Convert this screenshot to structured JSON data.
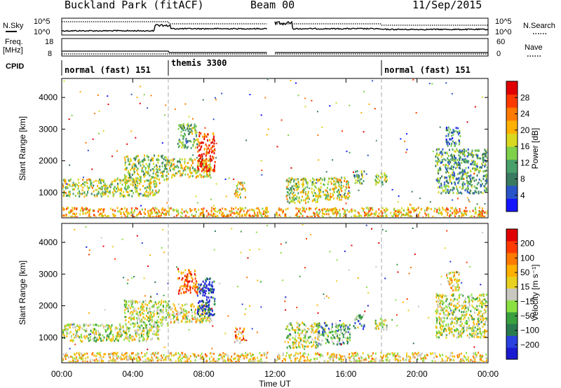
{
  "header": {
    "station": "Buckland Park (fitACF)",
    "beam": "Beam 00",
    "date": "11/Sep/2015"
  },
  "noise_panel": {
    "left_label": "N.Sky",
    "right_label": "N.Search",
    "left_ticks": [
      "10^5",
      "10^0"
    ],
    "right_ticks": [
      "10^5",
      "10^0"
    ]
  },
  "freq_panel": {
    "left_label_line1": "Freq.",
    "left_label_line2": "[MHz]",
    "right_label": "Nave",
    "left_ticks": [
      "18",
      "8"
    ],
    "right_ticks": [
      "60",
      "0"
    ]
  },
  "cpid": {
    "label": "CPID",
    "segments": [
      {
        "name": "normal (fast) 151",
        "start_hour": 0,
        "end_hour": 6
      },
      {
        "name": "themis 3300",
        "start_hour": 6,
        "end_hour": 18
      },
      {
        "name": "normal (fast) 151",
        "start_hour": 18,
        "end_hour": 24
      }
    ]
  },
  "x_axis": {
    "label": "Time UT",
    "ticks": [
      "00:00",
      "04:00",
      "08:00",
      "12:00",
      "16:00",
      "20:00",
      "00:00"
    ]
  },
  "chart_data": [
    {
      "type": "heatmap",
      "panel": "power",
      "ylabel": "Slant Range [km]",
      "yticks": [
        "1000",
        "2000",
        "3000",
        "4000"
      ],
      "ylim": [
        200,
        4600
      ],
      "xlim": [
        0,
        24
      ],
      "colorbar_label": "Power [dB]",
      "colorbar_ticks": [
        "28",
        "24",
        "20",
        "16",
        "12",
        "8",
        "4"
      ],
      "colorbar_colors": [
        "#1414ff",
        "#2a55c8",
        "#3a7a60",
        "#4aa06a",
        "#7fd04a",
        "#d8d820",
        "#ffb000",
        "#ff7a00",
        "#ff3a00",
        "#e00000"
      ],
      "data_gap_hours": [
        11.6,
        12.0
      ],
      "regions": [
        {
          "t0": 0.0,
          "t1": 5.5,
          "r0": 900,
          "r1": 1450,
          "level": 0.5
        },
        {
          "t0": 3.5,
          "t1": 6.0,
          "r0": 1400,
          "r1": 2200,
          "level": 0.45
        },
        {
          "t0": 6.0,
          "t1": 8.4,
          "r0": 1500,
          "r1": 2100,
          "level": 0.5
        },
        {
          "t0": 7.6,
          "t1": 8.6,
          "r0": 1700,
          "r1": 2900,
          "level": 0.85
        },
        {
          "t0": 6.5,
          "t1": 7.6,
          "r0": 2400,
          "r1": 3200,
          "level": 0.4
        },
        {
          "t0": 9.7,
          "t1": 10.3,
          "r0": 850,
          "r1": 1350,
          "level": 0.55
        },
        {
          "t0": 12.6,
          "t1": 14.4,
          "r0": 700,
          "r1": 1500,
          "level": 0.5
        },
        {
          "t0": 14.4,
          "t1": 16.2,
          "r0": 800,
          "r1": 1500,
          "level": 0.55
        },
        {
          "t0": 16.4,
          "t1": 17.0,
          "r0": 1300,
          "r1": 1750,
          "level": 0.4
        },
        {
          "t0": 17.6,
          "t1": 18.3,
          "r0": 1250,
          "r1": 1650,
          "level": 0.45
        },
        {
          "t0": 21.0,
          "t1": 24.0,
          "r0": 1000,
          "r1": 2400,
          "level": 0.35
        },
        {
          "t0": 21.6,
          "t1": 22.4,
          "r0": 2500,
          "r1": 3100,
          "level": 0.25
        },
        {
          "t0": 0.0,
          "t1": 24.0,
          "r0": 200,
          "r1": 550,
          "level": 0.65
        }
      ]
    },
    {
      "type": "heatmap",
      "panel": "velocity",
      "ylabel": "Slant Range [km]",
      "yticks": [
        "1000",
        "2000",
        "3000",
        "4000"
      ],
      "ylim": [
        200,
        4600
      ],
      "xlim": [
        0,
        24
      ],
      "colorbar_label": "Velocity [m s⁻¹]",
      "colorbar_ticks": [
        "200",
        "100",
        "50",
        "15",
        "−15",
        "−50",
        "−100",
        "−200"
      ],
      "colorbar_colors": [
        "#1a1ad0",
        "#2a40e0",
        "#2a7a50",
        "#3aa040",
        "#8ae040",
        "#c8c8c0",
        "#e8d020",
        "#ffb000",
        "#ff7a00",
        "#ff3a00",
        "#e00000"
      ],
      "data_gap_hours": [
        11.6,
        12.0
      ],
      "regions": [
        {
          "t0": 0.0,
          "t1": 5.5,
          "r0": 900,
          "r1": 1450,
          "level": 0.5
        },
        {
          "t0": 3.5,
          "t1": 6.0,
          "r0": 1400,
          "r1": 2200,
          "level": 0.5
        },
        {
          "t0": 6.0,
          "t1": 8.4,
          "r0": 1500,
          "r1": 2100,
          "level": 0.55
        },
        {
          "t0": 7.6,
          "t1": 8.6,
          "r0": 1700,
          "r1": 2900,
          "level": 0.1
        },
        {
          "t0": 6.5,
          "t1": 7.6,
          "r0": 2400,
          "r1": 3200,
          "level": 0.8
        },
        {
          "t0": 9.7,
          "t1": 10.3,
          "r0": 850,
          "r1": 1350,
          "level": 0.7
        },
        {
          "t0": 12.6,
          "t1": 14.4,
          "r0": 700,
          "r1": 1500,
          "level": 0.5
        },
        {
          "t0": 14.4,
          "t1": 16.2,
          "r0": 800,
          "r1": 1500,
          "level": 0.35
        },
        {
          "t0": 16.4,
          "t1": 17.0,
          "r0": 1300,
          "r1": 1750,
          "level": 0.35
        },
        {
          "t0": 17.6,
          "t1": 18.3,
          "r0": 1250,
          "r1": 1650,
          "level": 0.5
        },
        {
          "t0": 21.0,
          "t1": 24.0,
          "r0": 1000,
          "r1": 2400,
          "level": 0.5
        },
        {
          "t0": 21.6,
          "t1": 22.4,
          "r0": 2500,
          "r1": 3100,
          "level": 0.6
        },
        {
          "t0": 0.0,
          "t1": 24.0,
          "r0": 200,
          "r1": 550,
          "level": 0.6
        }
      ]
    }
  ]
}
